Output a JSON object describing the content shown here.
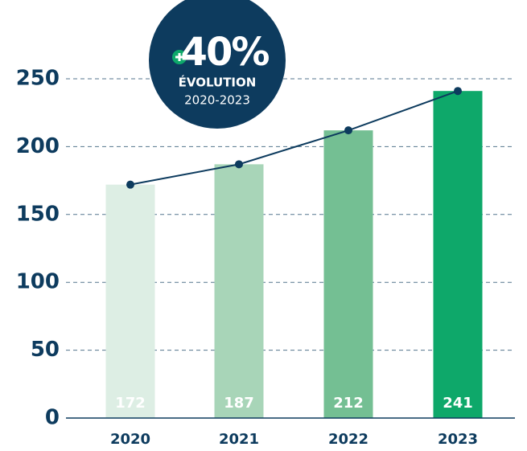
{
  "chart_data": {
    "type": "bar",
    "categories": [
      "2020",
      "2021",
      "2022",
      "2023"
    ],
    "values": [
      172,
      187,
      212,
      241
    ],
    "colors": [
      "#ddeee4",
      "#a8d5b8",
      "#74bf93",
      "#0ea86a"
    ],
    "line_color": "#0d3b5e",
    "ylim": [
      0,
      250
    ],
    "yticks": [
      0,
      50,
      100,
      150,
      200,
      250
    ],
    "grid": true,
    "badge": {
      "headline": "40%",
      "label": "ÉVOLUTION",
      "period": "2020-2023"
    }
  }
}
